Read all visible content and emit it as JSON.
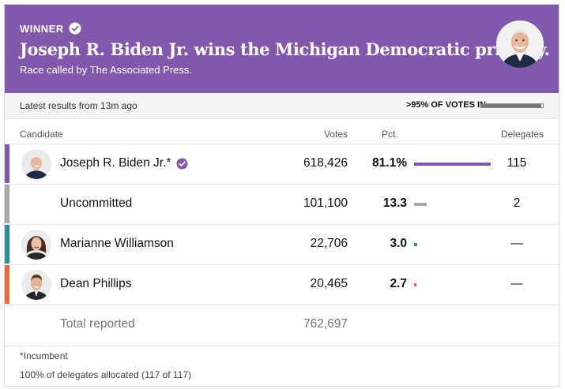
{
  "banner": {
    "winner_label": "WINNER",
    "headline": "Joseph R. Biden Jr. wins the Michigan Democratic primary.",
    "subline": "Race called by The Associated Press.",
    "color": "#8159ac"
  },
  "status": {
    "latest": "Latest results from 13m ago",
    "votes_in": ">95% OF VOTES IN",
    "reporting_fraction": 0.97
  },
  "table": {
    "headers": {
      "candidate": "Candidate",
      "votes": "Votes",
      "pct": "Pct.",
      "delegates": "Delegates"
    },
    "rows": [
      {
        "name": "Joseph R. Biden Jr.*",
        "votes": "618,426",
        "pct": "81.1%",
        "pct_value": 81.1,
        "delegates": "115",
        "color": "#8159ac",
        "bar_color": "#8159ac",
        "winner": true
      },
      {
        "name": "Uncommitted",
        "votes": "101,100",
        "pct": "13.3",
        "pct_value": 13.3,
        "delegates": "2",
        "color": "#a8a8a8",
        "bar_color": "#a8a8a8"
      },
      {
        "name": "Marianne Williamson",
        "votes": "22,706",
        "pct": "3.0",
        "pct_value": 3.0,
        "delegates": "—",
        "color": "#2b8e9c",
        "bar_color": "#2b8e9c"
      },
      {
        "name": "Dean Phillips",
        "votes": "20,465",
        "pct": "2.7",
        "pct_value": 2.7,
        "delegates": "—",
        "color": "#e06a3a",
        "bar_color": "#e06a3a"
      }
    ],
    "total": {
      "label": "Total reported",
      "votes": "762,697"
    }
  },
  "footer": {
    "incumbent_note": "*Incumbent",
    "delegates_note": "100% of delegates allocated (117 of 117)"
  }
}
